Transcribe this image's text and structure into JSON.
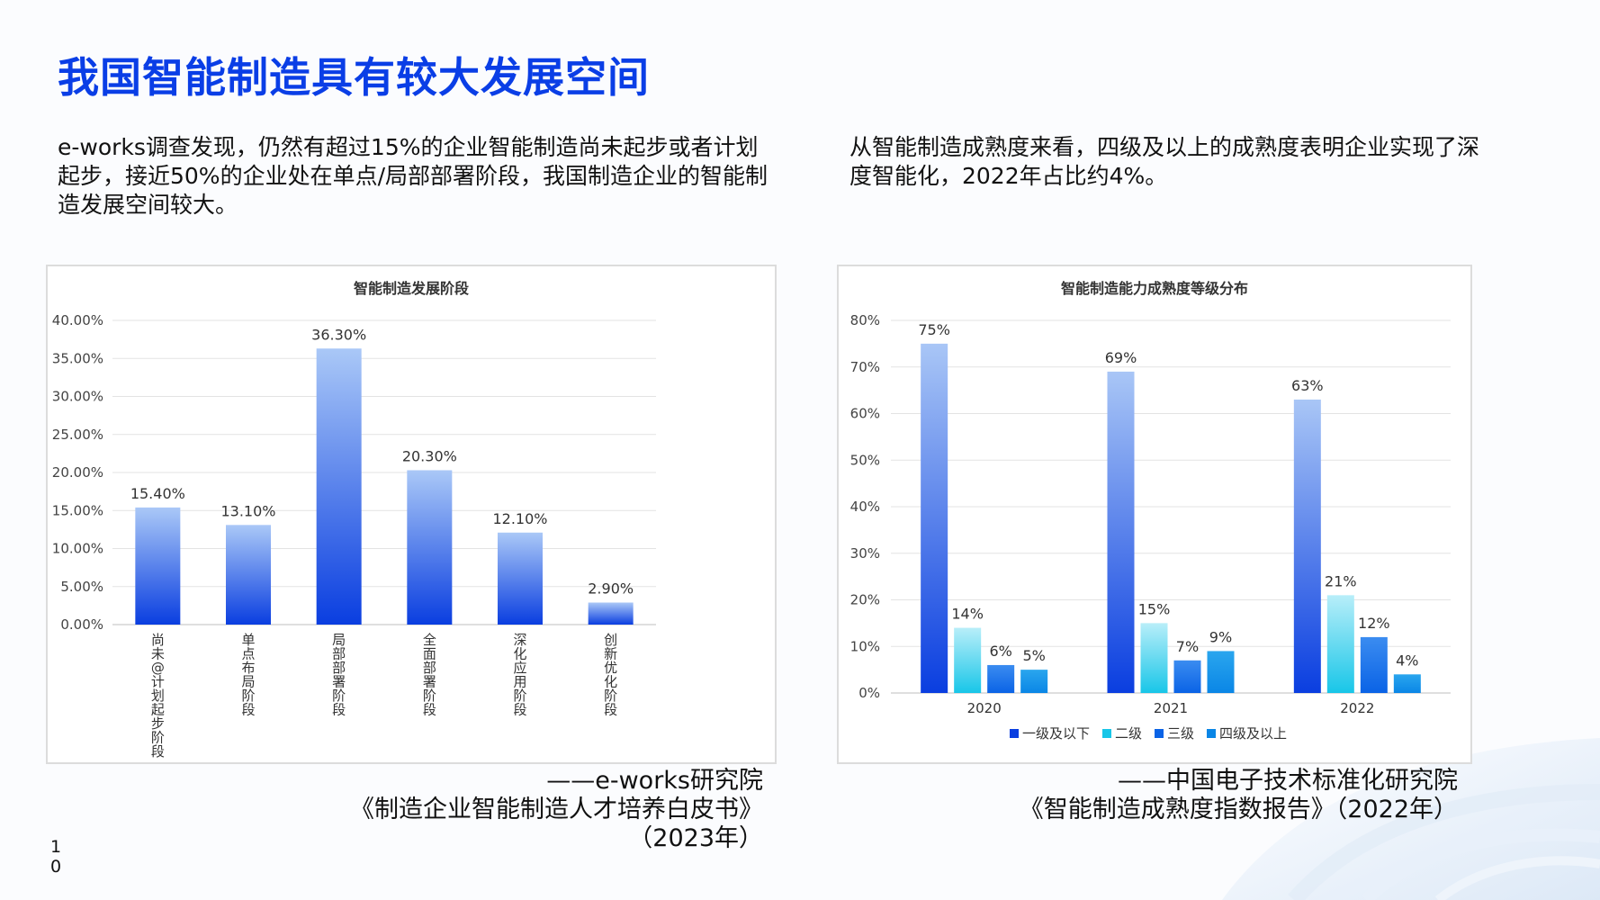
{
  "page": {
    "title": "我国智能制造具有较大发展空间",
    "left_paragraph": "e-works调查发现，仍然有超过15%的企业智能制造尚未起步或者计划起步，接近50%的企业处在单点/局部部署阶段，我国制造企业的智能制造发展空间较大。",
    "right_paragraph": "从智能制造成熟度来看，四级及以上的成熟度表明企业实现了深度智能化，2022年占比约4%。",
    "left_source": [
      "——e-works研究院",
      "《制造企业智能制造人才培养白皮书》",
      "（2023年）"
    ],
    "right_source": [
      "——中国电子技术标准化研究院",
      "《智能制造成熟度指数报告》（2022年）"
    ],
    "page_number": "10"
  },
  "colors": {
    "title": "#0a3ee6",
    "bar_dark_top": "#aac8f7",
    "bar_dark_bottom": "#0a3ee0",
    "series": [
      "#0a3ee0",
      "#18c6e8",
      "#0a63e6",
      "#0a86e6"
    ]
  },
  "chart_data": [
    {
      "type": "bar",
      "title": "智能制造发展阶段",
      "categories": [
        "尚未@计划起步阶段",
        "单点布局阶段",
        "局部部署阶段",
        "全面部署阶段",
        "深化应用阶段",
        "创新优化阶段"
      ],
      "values": [
        15.4,
        13.1,
        36.3,
        20.3,
        12.1,
        2.9
      ],
      "value_labels": [
        "15.40%",
        "13.10%",
        "36.30%",
        "20.30%",
        "12.10%",
        "2.90%"
      ],
      "y_ticks": [
        "0.00%",
        "5.00%",
        "10.00%",
        "15.00%",
        "20.00%",
        "25.00%",
        "30.00%",
        "35.00%",
        "40.00%"
      ],
      "ylim": [
        0,
        40
      ],
      "xlabel": "",
      "ylabel": "",
      "grid": true
    },
    {
      "type": "bar",
      "title": "智能制造能力成熟度等级分布",
      "categories": [
        "2020",
        "2021",
        "2022"
      ],
      "series": [
        {
          "name": "一级及以下",
          "values": [
            75,
            69,
            63
          ],
          "labels": [
            "75%",
            "69%",
            "63%"
          ]
        },
        {
          "name": "二级",
          "values": [
            14,
            15,
            21
          ],
          "labels": [
            "14%",
            "15%",
            "21%"
          ]
        },
        {
          "name": "三级",
          "values": [
            6,
            7,
            12
          ],
          "labels": [
            "6%",
            "7%",
            "12%"
          ]
        },
        {
          "name": "四级及以上",
          "values": [
            5,
            9,
            4
          ],
          "labels": [
            "5%",
            "9%",
            "4%"
          ]
        }
      ],
      "y_ticks": [
        "0%",
        "10%",
        "20%",
        "30%",
        "40%",
        "50%",
        "60%",
        "70%",
        "80%"
      ],
      "ylim": [
        0,
        80
      ],
      "xlabel": "",
      "ylabel": "",
      "grid": true,
      "legend_position": "bottom"
    }
  ]
}
